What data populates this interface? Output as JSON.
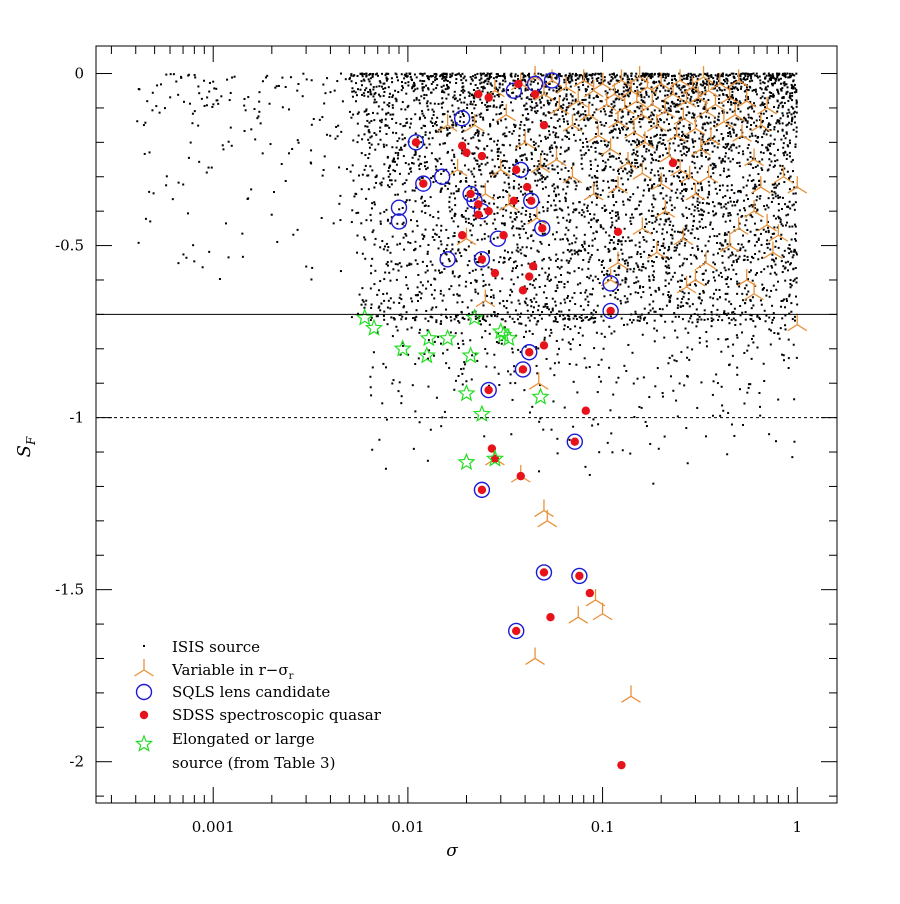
{
  "chart_data": {
    "type": "scatter",
    "xlabel": "σ",
    "ylabel_main": "S",
    "ylabel_sub": "F",
    "x_scale": "log",
    "xlim": [
      0.00025,
      1.6
    ],
    "ylim": [
      -2.12,
      0.08
    ],
    "x_ticks": [
      {
        "value": 0.001,
        "label": "0.001"
      },
      {
        "value": 0.01,
        "label": "0.01"
      },
      {
        "value": 0.1,
        "label": "0.1"
      },
      {
        "value": 1,
        "label": "1"
      }
    ],
    "y_ticks": [
      {
        "value": 0,
        "label": "0"
      },
      {
        "value": -0.5,
        "label": "-0.5"
      },
      {
        "value": -1,
        "label": "-1"
      },
      {
        "value": -1.5,
        "label": "-1.5"
      },
      {
        "value": -2,
        "label": "-2"
      }
    ],
    "reference_lines": [
      {
        "y": -0.7,
        "style": "solid"
      },
      {
        "y": -1.0,
        "style": "dashed"
      }
    ],
    "legend_position": "bottom-left",
    "colors": {
      "isis": "#000000",
      "variable": "#e8923a",
      "sqls": "#1a1ad6",
      "sdss": "#e8121a",
      "elongated": "#22dd22"
    },
    "legend": {
      "isis": "ISIS source",
      "variable": "Variable in r−σ",
      "variable_sub": "r",
      "sqls": "SQLS lens candidate",
      "sdss": "SDSS spectroscopic quasar",
      "elongated_line1": "Elongated or large",
      "elongated_line2": "source (from Table 3)"
    },
    "isis_distribution": {
      "count": 5200,
      "note_points_span": [
        0.0004,
        1.0
      ],
      "seed": 7
    },
    "series": [
      {
        "name": "Variable in r−σr",
        "marker": "tripod",
        "points": [
          [
            0.038,
            -0.03
          ],
          [
            0.045,
            -0.01
          ],
          [
            0.05,
            -0.06
          ],
          [
            0.055,
            -0.02
          ],
          [
            0.06,
            -0.1
          ],
          [
            0.065,
            -0.04
          ],
          [
            0.07,
            -0.15
          ],
          [
            0.075,
            -0.08
          ],
          [
            0.08,
            -0.02
          ],
          [
            0.085,
            -0.12
          ],
          [
            0.09,
            -0.05
          ],
          [
            0.095,
            -0.18
          ],
          [
            0.1,
            -0.03
          ],
          [
            0.105,
            -0.09
          ],
          [
            0.11,
            -0.22
          ],
          [
            0.115,
            -0.06
          ],
          [
            0.12,
            -0.14
          ],
          [
            0.125,
            -0.02
          ],
          [
            0.13,
            -0.1
          ],
          [
            0.135,
            -0.26
          ],
          [
            0.14,
            -0.05
          ],
          [
            0.145,
            -0.17
          ],
          [
            0.15,
            -0.08
          ],
          [
            0.155,
            -0.01
          ],
          [
            0.16,
            -0.12
          ],
          [
            0.165,
            -0.2
          ],
          [
            0.17,
            -0.04
          ],
          [
            0.18,
            -0.09
          ],
          [
            0.19,
            -0.15
          ],
          [
            0.2,
            -0.03
          ],
          [
            0.21,
            -0.11
          ],
          [
            0.22,
            -0.24
          ],
          [
            0.23,
            -0.06
          ],
          [
            0.24,
            -0.18
          ],
          [
            0.25,
            -0.02
          ],
          [
            0.26,
            -0.13
          ],
          [
            0.27,
            -0.08
          ],
          [
            0.28,
            -0.3
          ],
          [
            0.29,
            -0.04
          ],
          [
            0.3,
            -0.16
          ],
          [
            0.31,
            -0.07
          ],
          [
            0.32,
            -0.22
          ],
          [
            0.33,
            -0.01
          ],
          [
            0.34,
            -0.11
          ],
          [
            0.35,
            -0.05
          ],
          [
            0.36,
            -0.19
          ],
          [
            0.38,
            -0.09
          ],
          [
            0.4,
            -0.03
          ],
          [
            0.42,
            -0.14
          ],
          [
            0.45,
            -0.07
          ],
          [
            0.48,
            -0.12
          ],
          [
            0.5,
            -0.02
          ],
          [
            0.52,
            -0.18
          ],
          [
            0.55,
            -0.08
          ],
          [
            0.6,
            -0.25
          ],
          [
            0.65,
            -0.15
          ],
          [
            0.7,
            -0.1
          ],
          [
            0.07,
            -0.3
          ],
          [
            0.09,
            -0.35
          ],
          [
            0.12,
            -0.33
          ],
          [
            0.16,
            -0.29
          ],
          [
            0.2,
            -0.32
          ],
          [
            0.25,
            -0.28
          ],
          [
            0.3,
            -0.35
          ],
          [
            0.35,
            -0.3
          ],
          [
            0.028,
            -0.05
          ],
          [
            0.032,
            -0.12
          ],
          [
            0.04,
            -0.2
          ],
          [
            0.048,
            -0.27
          ],
          [
            0.058,
            -0.25
          ],
          [
            0.033,
            -0.38
          ],
          [
            0.046,
            -0.42
          ],
          [
            0.03,
            -0.28
          ],
          [
            0.022,
            -0.15
          ],
          [
            0.025,
            -0.35
          ],
          [
            0.6,
            -0.4
          ],
          [
            0.65,
            -0.33
          ],
          [
            0.7,
            -0.44
          ],
          [
            0.8,
            -0.47
          ],
          [
            0.75,
            -0.52
          ],
          [
            0.85,
            -0.3
          ],
          [
            1.0,
            -0.33
          ],
          [
            0.55,
            -0.6
          ],
          [
            0.6,
            -0.64
          ],
          [
            0.3,
            -0.6
          ],
          [
            0.27,
            -0.62
          ],
          [
            0.34,
            -0.55
          ],
          [
            0.26,
            -0.48
          ],
          [
            0.45,
            -0.5
          ],
          [
            0.5,
            -0.45
          ],
          [
            0.11,
            -0.6
          ],
          [
            0.12,
            -0.55
          ],
          [
            1.0,
            -0.73
          ],
          [
            0.025,
            -0.66
          ],
          [
            0.047,
            -0.9
          ],
          [
            0.028,
            -1.12
          ],
          [
            0.038,
            -1.17
          ],
          [
            0.05,
            -1.27
          ],
          [
            0.052,
            -1.3
          ],
          [
            0.1,
            -1.57
          ],
          [
            0.075,
            -1.58
          ],
          [
            0.092,
            -1.53
          ],
          [
            0.045,
            -1.7
          ],
          [
            0.14,
            -1.81
          ],
          [
            0.02,
            -0.48
          ],
          [
            0.018,
            -0.28
          ],
          [
            0.016,
            -0.15
          ],
          [
            0.21,
            -0.4
          ],
          [
            0.16,
            -0.45
          ],
          [
            0.19,
            -0.52
          ]
        ]
      },
      {
        "name": "SQLS lens candidate",
        "marker": "circle",
        "points": [
          [
            0.019,
            -0.13
          ],
          [
            0.035,
            -0.05
          ],
          [
            0.045,
            -0.03
          ],
          [
            0.055,
            -0.02
          ],
          [
            0.011,
            -0.2
          ],
          [
            0.012,
            -0.32
          ],
          [
            0.015,
            -0.3
          ],
          [
            0.009,
            -0.39
          ],
          [
            0.009,
            -0.43
          ],
          [
            0.021,
            -0.35
          ],
          [
            0.022,
            -0.37
          ],
          [
            0.024,
            -0.4
          ],
          [
            0.029,
            -0.48
          ],
          [
            0.024,
            -0.54
          ],
          [
            0.016,
            -0.54
          ],
          [
            0.038,
            -0.28
          ],
          [
            0.043,
            -0.37
          ],
          [
            0.049,
            -0.45
          ],
          [
            0.11,
            -0.61
          ],
          [
            0.11,
            -0.69
          ],
          [
            0.042,
            -0.81
          ],
          [
            0.039,
            -0.86
          ],
          [
            0.026,
            -0.92
          ],
          [
            0.072,
            -1.07
          ],
          [
            0.024,
            -1.21
          ],
          [
            0.05,
            -1.45
          ],
          [
            0.076,
            -1.46
          ],
          [
            0.036,
            -1.62
          ]
        ]
      },
      {
        "name": "SDSS spectroscopic quasar",
        "marker": "dot",
        "points": [
          [
            0.023,
            -0.06
          ],
          [
            0.026,
            -0.07
          ],
          [
            0.037,
            -0.03
          ],
          [
            0.045,
            -0.06
          ],
          [
            0.05,
            -0.15
          ],
          [
            0.011,
            -0.2
          ],
          [
            0.02,
            -0.23
          ],
          [
            0.024,
            -0.24
          ],
          [
            0.019,
            -0.21
          ],
          [
            0.036,
            -0.28
          ],
          [
            0.012,
            -0.32
          ],
          [
            0.021,
            -0.35
          ],
          [
            0.023,
            -0.38
          ],
          [
            0.026,
            -0.4
          ],
          [
            0.023,
            -0.41
          ],
          [
            0.031,
            -0.47
          ],
          [
            0.043,
            -0.37
          ],
          [
            0.035,
            -0.37
          ],
          [
            0.041,
            -0.33
          ],
          [
            0.049,
            -0.45
          ],
          [
            0.019,
            -0.47
          ],
          [
            0.024,
            -0.54
          ],
          [
            0.028,
            -0.58
          ],
          [
            0.044,
            -0.56
          ],
          [
            0.042,
            -0.59
          ],
          [
            0.039,
            -0.63
          ],
          [
            0.11,
            -0.69
          ],
          [
            0.12,
            -0.46
          ],
          [
            0.23,
            -0.26
          ],
          [
            0.042,
            -0.81
          ],
          [
            0.05,
            -0.79
          ],
          [
            0.039,
            -0.86
          ],
          [
            0.026,
            -0.92
          ],
          [
            0.082,
            -0.98
          ],
          [
            0.072,
            -1.07
          ],
          [
            0.027,
            -1.09
          ],
          [
            0.028,
            -1.12
          ],
          [
            0.038,
            -1.17
          ],
          [
            0.024,
            -1.21
          ],
          [
            0.05,
            -1.45
          ],
          [
            0.076,
            -1.46
          ],
          [
            0.086,
            -1.51
          ],
          [
            0.054,
            -1.58
          ],
          [
            0.036,
            -1.62
          ],
          [
            0.125,
            -2.01
          ]
        ]
      },
      {
        "name": "Elongated or large source (from Table 3)",
        "marker": "star",
        "points": [
          [
            0.006,
            -0.71
          ],
          [
            0.0067,
            -0.74
          ],
          [
            0.0094,
            -0.8
          ],
          [
            0.0128,
            -0.77
          ],
          [
            0.0125,
            -0.82
          ],
          [
            0.016,
            -0.77
          ],
          [
            0.021,
            -0.82
          ],
          [
            0.022,
            -0.71
          ],
          [
            0.031,
            -0.76
          ],
          [
            0.033,
            -0.77
          ],
          [
            0.03,
            -0.75
          ],
          [
            0.02,
            -0.93
          ],
          [
            0.024,
            -0.99
          ],
          [
            0.048,
            -0.94
          ],
          [
            0.02,
            -1.13
          ],
          [
            0.028,
            -1.12
          ]
        ]
      }
    ]
  }
}
